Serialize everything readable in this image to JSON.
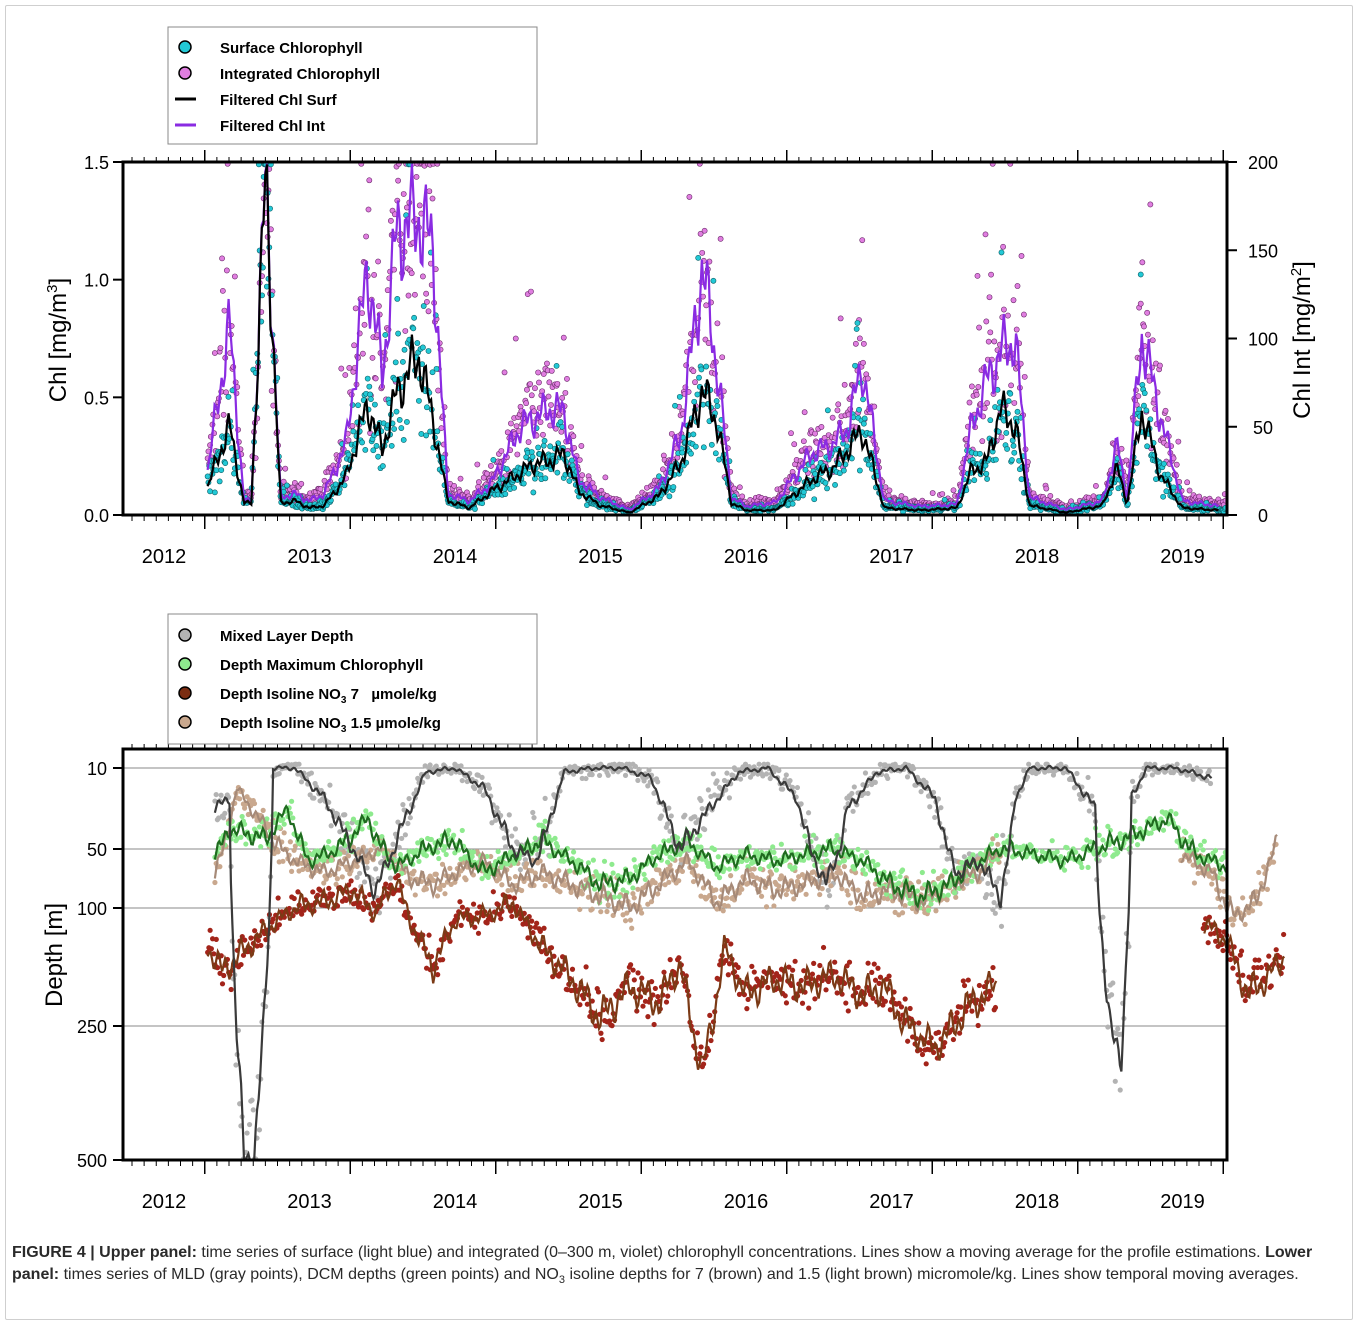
{
  "chart_data": [
    {
      "type": "scatter",
      "x_ticks": [
        "2012",
        "2013",
        "2014",
        "2015",
        "2016",
        "2017",
        "2018",
        "2019"
      ],
      "xlim": [
        2012.0,
        2019.75
      ],
      "ylabel": "Chl [mg/m",
      "ylabel_sup": "3",
      "ylabel_close": "]",
      "y_ticks": [
        "0.0",
        "0.5",
        "1.0",
        "1.5"
      ],
      "ylim": [
        0,
        1.5
      ],
      "y2label": "Chl Int [mg/m",
      "y2label_sup": "2",
      "y2label_close": "]",
      "y2_ticks": [
        "0",
        "50",
        "100",
        "150",
        "200"
      ],
      "y2lim": [
        0,
        200
      ],
      "legend_position": "top-left, above plot",
      "legend": [
        {
          "label": "Surface Chlorophyll",
          "kind": "point",
          "color": "#22c9d6"
        },
        {
          "label": "Integrated Chlorophyll",
          "kind": "point",
          "color": "#e07ee0"
        },
        {
          "label": "Filtered Chl Surf",
          "kind": "line",
          "color": "#000000"
        },
        {
          "label": "Filtered Chl Int",
          "kind": "line",
          "color": "#8a2be2"
        }
      ],
      "series": [
        {
          "name": "Filtered Chl Surf",
          "color": "#000000",
          "x": [
            2012.3,
            2012.45,
            2012.55,
            2012.6,
            2012.7,
            2012.8,
            2012.9,
            2013.0,
            2013.1,
            2013.25,
            2013.4,
            2013.5,
            2013.6,
            2013.75,
            2013.85,
            2013.95,
            2014.1,
            2014.25,
            2014.45,
            2014.55,
            2014.65,
            2014.75,
            2014.85,
            2015.0,
            2015.2,
            2015.4,
            2015.55,
            2015.7,
            2015.8,
            2015.9,
            2016.0,
            2016.2,
            2016.45,
            2016.6,
            2016.7,
            2016.8,
            2016.95,
            2017.2,
            2017.45,
            2017.55,
            2017.65,
            2017.75,
            2017.85,
            2017.95,
            2018.2,
            2018.45,
            2018.55,
            2018.62,
            2018.72,
            2018.85,
            2019.0,
            2019.25
          ],
          "y": [
            0.12,
            0.38,
            0.05,
            0.05,
            1.45,
            0.05,
            0.06,
            0.03,
            0.04,
            0.16,
            0.47,
            0.28,
            0.52,
            0.68,
            0.4,
            0.06,
            0.03,
            0.1,
            0.18,
            0.22,
            0.23,
            0.26,
            0.1,
            0.04,
            0.01,
            0.08,
            0.22,
            0.53,
            0.4,
            0.05,
            0.02,
            0.02,
            0.15,
            0.2,
            0.28,
            0.36,
            0.03,
            0.02,
            0.03,
            0.19,
            0.22,
            0.45,
            0.38,
            0.04,
            0.01,
            0.04,
            0.2,
            0.05,
            0.44,
            0.17,
            0.03,
            0.02
          ]
        },
        {
          "name": "Filtered Chl Int",
          "color": "#8a2be2",
          "x": [
            2012.3,
            2012.45,
            2012.55,
            2012.6,
            2012.7,
            2012.8,
            2012.9,
            2013.0,
            2013.1,
            2013.25,
            2013.4,
            2013.5,
            2013.6,
            2013.75,
            2013.85,
            2013.95,
            2014.1,
            2014.25,
            2014.45,
            2014.55,
            2014.65,
            2014.75,
            2014.85,
            2015.0,
            2015.2,
            2015.4,
            2015.55,
            2015.7,
            2015.8,
            2015.9,
            2016.0,
            2016.2,
            2016.45,
            2016.6,
            2016.7,
            2016.8,
            2016.95,
            2017.2,
            2017.45,
            2017.55,
            2017.65,
            2017.75,
            2017.85,
            2017.95,
            2018.2,
            2018.45,
            2018.55,
            2018.62,
            2018.72,
            2018.85,
            2019.0,
            2019.25
          ],
          "y": [
            25,
            108,
            8,
            8,
            195,
            10,
            12,
            8,
            12,
            40,
            140,
            80,
            160,
            170,
            150,
            12,
            8,
            18,
            50,
            55,
            60,
            58,
            20,
            10,
            3,
            15,
            45,
            140,
            85,
            10,
            5,
            7,
            35,
            40,
            50,
            85,
            8,
            5,
            6,
            50,
            75,
            92,
            100,
            10,
            3,
            8,
            40,
            10,
            102,
            55,
            8,
            5
          ]
        }
      ]
    },
    {
      "type": "scatter",
      "x_ticks": [
        "2012",
        "2013",
        "2014",
        "2015",
        "2016",
        "2017",
        "2018",
        "2019"
      ],
      "xlim": [
        2012.0,
        2019.75
      ],
      "ylabel": "Depth [m]",
      "y_ticks": [
        "10",
        "50",
        "100",
        "250",
        "500"
      ],
      "ylim": [
        500,
        0
      ],
      "legend_position": "top-left, above plot",
      "legend": [
        {
          "label": "Mixed Layer Depth",
          "color": "#b3b3b3"
        },
        {
          "label": "Depth Maximum Chlorophyll",
          "color": "#8eea8e"
        },
        {
          "label": "Depth Isoline NO",
          "sub": "3",
          "rest": " 7   µmole/kg",
          "color": "#7b2d12"
        },
        {
          "label": "Depth Isoline NO",
          "sub": "3",
          "rest": " 1.5 µmole/kg",
          "color": "#c9a88e"
        }
      ],
      "series": [
        {
          "name": "Mixed Layer Depth",
          "color": "#3a3a3a",
          "x": [
            2012.35,
            2012.45,
            2012.55,
            2012.62,
            2012.75,
            2012.9,
            2013.1,
            2013.3,
            2013.45,
            2013.6,
            2013.8,
            2014.0,
            2014.2,
            2014.4,
            2014.55,
            2014.75,
            2014.95,
            2015.15,
            2015.35,
            2015.55,
            2015.75,
            2015.95,
            2016.15,
            2016.35,
            2016.55,
            2016.7,
            2016.9,
            2017.1,
            2017.3,
            2017.45,
            2017.6,
            2017.75,
            2017.85,
            2017.95,
            2018.2,
            2018.4,
            2018.5,
            2018.58,
            2018.65,
            2018.75,
            2018.95,
            2019.2
          ],
          "y": [
            30,
            25,
            500,
            500,
            10,
            10,
            25,
            50,
            85,
            45,
            12,
            10,
            20,
            50,
            60,
            12,
            10,
            10,
            15,
            50,
            30,
            12,
            10,
            25,
            80,
            30,
            12,
            10,
            25,
            70,
            60,
            90,
            25,
            10,
            10,
            30,
            260,
            300,
            25,
            10,
            10,
            15
          ]
        },
        {
          "name": "Depth Maximum Chlorophyll",
          "color": "#1f6b1f",
          "x": [
            2012.35,
            2012.45,
            2012.7,
            2012.85,
            2013.0,
            2013.2,
            2013.4,
            2013.6,
            2013.8,
            2014.0,
            2014.2,
            2014.4,
            2014.6,
            2014.8,
            2015.0,
            2015.2,
            2015.4,
            2015.6,
            2015.8,
            2016.0,
            2016.2,
            2016.4,
            2016.6,
            2016.8,
            2017.0,
            2017.2,
            2017.4,
            2017.6,
            2017.75,
            2018.0,
            2018.2,
            2018.4,
            2018.6,
            2018.9,
            2019.1,
            2019.3
          ],
          "y": [
            55,
            40,
            45,
            30,
            60,
            50,
            35,
            65,
            50,
            45,
            70,
            55,
            45,
            60,
            80,
            75,
            55,
            45,
            65,
            55,
            60,
            55,
            50,
            60,
            80,
            90,
            80,
            60,
            50,
            55,
            60,
            50,
            45,
            35,
            55,
            65
          ]
        },
        {
          "name": "Depth Isoline NO3 7",
          "color": "#7b3a16",
          "x": [
            2012.3,
            2012.4,
            2012.75,
            2012.9,
            2013.1,
            2013.3,
            2013.45,
            2013.6,
            2013.75,
            2013.85,
            2014.0,
            2014.2,
            2014.4,
            2014.6,
            2014.8,
            2015.0,
            2015.2,
            2015.4,
            2015.55,
            2015.7,
            2015.85,
            2016.0,
            2016.2,
            2016.4,
            2016.6,
            2016.8,
            2016.95,
            2017.1,
            2017.3,
            2017.5,
            2017.7,
            2019.15,
            2019.3,
            2019.45,
            2019.6,
            2019.7
          ],
          "y": [
            150,
            180,
            120,
            100,
            95,
            85,
            105,
            75,
            140,
            175,
            115,
            110,
            95,
            150,
            190,
            240,
            200,
            220,
            170,
            330,
            150,
            210,
            190,
            200,
            185,
            210,
            200,
            250,
            290,
            230,
            200,
            120,
            140,
            210,
            185,
            160
          ]
        },
        {
          "name": "Depth Isoline NO3 1.5",
          "color": "#a68a78",
          "x": [
            2012.35,
            2012.5,
            2012.7,
            2012.9,
            2013.1,
            2013.3,
            2013.5,
            2013.7,
            2013.85,
            2014.0,
            2014.2,
            2014.4,
            2014.6,
            2014.8,
            2015.0,
            2015.2,
            2015.4,
            2015.6,
            2015.8,
            2016.0,
            2016.2,
            2016.4,
            2016.6,
            2016.8,
            2017.0,
            2017.2,
            2017.4,
            2017.6,
            2017.75,
            2019.0,
            2019.2,
            2019.35,
            2019.5,
            2019.65
          ],
          "y": [
            70,
            20,
            40,
            60,
            70,
            60,
            50,
            75,
            80,
            70,
            60,
            80,
            70,
            80,
            90,
            100,
            80,
            60,
            95,
            75,
            85,
            80,
            70,
            90,
            85,
            95,
            80,
            70,
            50,
            55,
            70,
            110,
            95,
            45
          ]
        }
      ]
    }
  ],
  "caption": {
    "fig": "FIGURE 4 | Upper panel:",
    "t1": " time series of surface (light blue) and integrated (0–300 m, violet) chlorophyll concentrations. Lines show a moving average for the profile estimations. ",
    "lower": "Lower panel:",
    "t2": " times series of MLD (gray points), DCM depths (green points) and NO",
    "sub": "3",
    "t3": " isoline depths for 7 (brown) and 1.5 (light brown) micromole/kg. Lines show temporal moving averages."
  }
}
